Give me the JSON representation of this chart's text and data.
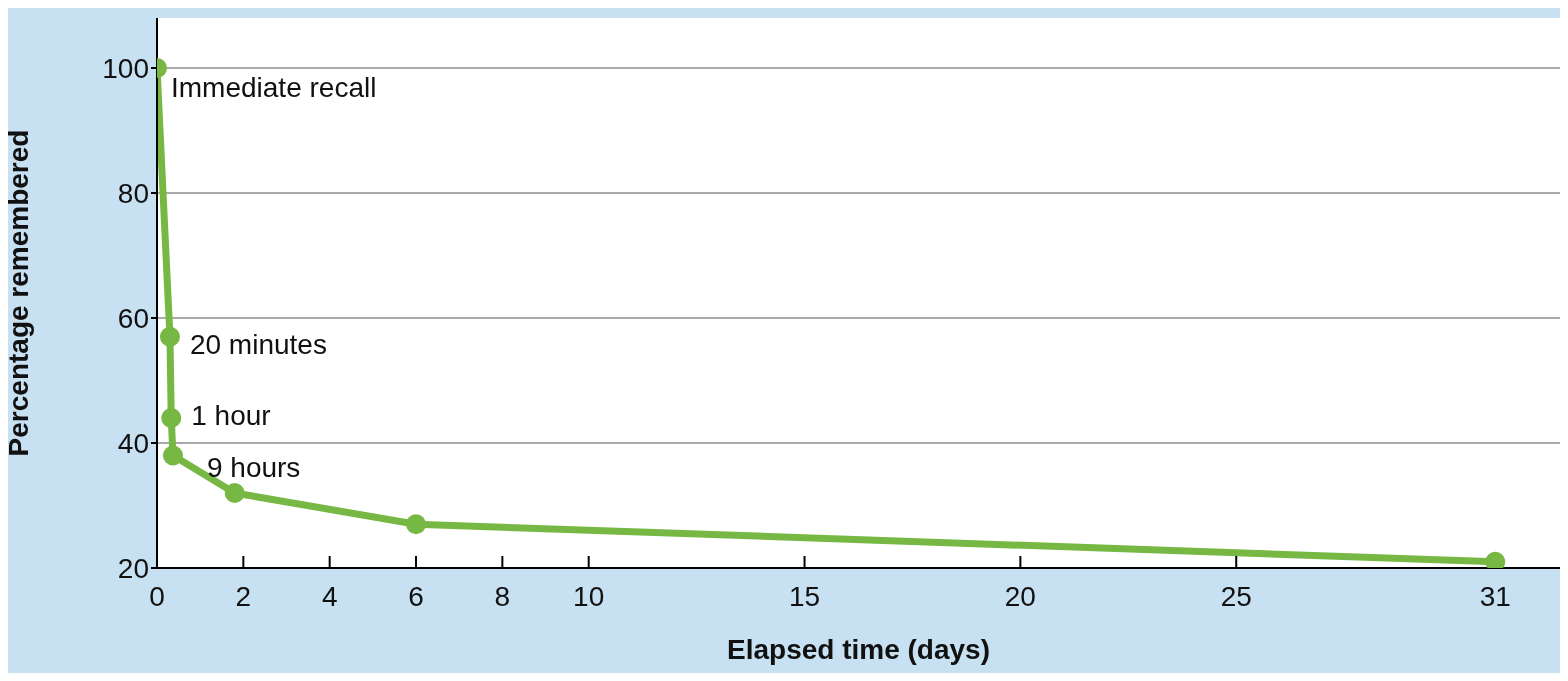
{
  "chart_data": {
    "type": "line",
    "xlabel": "Elapsed time (days)",
    "ylabel": "Percentage remembered",
    "x": [
      0,
      0.3,
      0.33,
      0.37,
      1.8,
      6,
      31
    ],
    "series": [
      {
        "color": "#76b843",
        "values": [
          100,
          57,
          44,
          38,
          32,
          27,
          21
        ]
      }
    ],
    "xlim": [
      0,
      32.5
    ],
    "xticks": [
      0,
      2,
      4,
      6,
      8,
      10,
      15,
      20,
      25,
      31
    ],
    "ylim": [
      20,
      108
    ],
    "yticks": [
      20,
      40,
      60,
      80,
      100
    ],
    "grid": "y",
    "marker": "circle",
    "line_style": "solid",
    "annotations": [
      {
        "text": "Immediate recall",
        "x": 0,
        "y": 100
      },
      {
        "text": "20 minutes",
        "x": 0.3,
        "y": 57
      },
      {
        "text": "1 hour",
        "x": 0.33,
        "y": 44
      },
      {
        "text": "9 hours",
        "x": 0.37,
        "y": 38
      }
    ]
  }
}
